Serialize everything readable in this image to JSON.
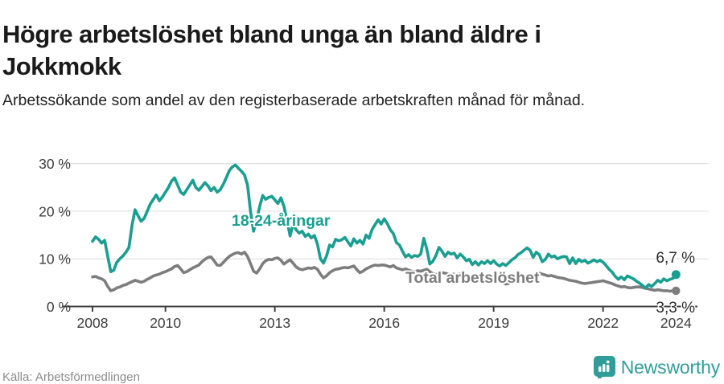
{
  "header": {
    "title_line1": "Högre arbetslöshet bland unga än bland äldre i",
    "title_line2": "Jokkmokk",
    "subtitle": "Arbetssökande som andel av den registerbaserade arbetskraften månad för månad."
  },
  "footer": {
    "source": "Källa: Arbetsförmedlingen",
    "brand_name": "Newsworthy"
  },
  "colors": {
    "young_line": "#1a9e91",
    "total_line": "#7d7d7d",
    "axis_text": "#3d3d3d",
    "grid": "#dcdcdc",
    "brand_teal": "#2f9e9a"
  },
  "chart_data": {
    "type": "line",
    "x_start": "2008-01",
    "x_end": "2024-01",
    "interval": "monthly",
    "ylim": [
      0,
      30
    ],
    "grid": true,
    "y_ticks": [
      {
        "value": 30,
        "label": "30 %"
      },
      {
        "value": 20,
        "label": "20 %"
      },
      {
        "value": 10,
        "label": "10 %"
      },
      {
        "value": 0,
        "label": "0 %"
      }
    ],
    "x_ticks": [
      {
        "year": 2008,
        "label": "2008"
      },
      {
        "year": 2010,
        "label": "2010"
      },
      {
        "year": 2013,
        "label": "2013"
      },
      {
        "year": 2016,
        "label": "2016"
      },
      {
        "year": 2019,
        "label": "2019"
      },
      {
        "year": 2022,
        "label": "2022"
      },
      {
        "year": 2024,
        "label": "2024"
      }
    ],
    "end_labels": {
      "young": "6,7 %",
      "total": "3,3 %"
    },
    "series": [
      {
        "name": "18-24-åringar",
        "color": "#1a9e91",
        "values": [
          13.7,
          14.6,
          14.1,
          13.3,
          13.9,
          10.5,
          7.3,
          7.6,
          9.3,
          10.0,
          10.6,
          11.4,
          12.4,
          17.0,
          20.3,
          19.0,
          17.9,
          18.5,
          20.0,
          21.5,
          22.5,
          23.4,
          22.2,
          23.0,
          24.0,
          25.0,
          26.3,
          27.0,
          25.5,
          24.0,
          23.5,
          24.5,
          25.5,
          26.5,
          25.0,
          24.4,
          25.2,
          26.0,
          25.3,
          24.3,
          25.0,
          24.0,
          24.5,
          25.6,
          27.0,
          28.5,
          29.3,
          29.7,
          29.0,
          28.4,
          27.6,
          25.5,
          20.0,
          15.8,
          18.0,
          21.0,
          23.3,
          22.5,
          22.9,
          23.1,
          22.4,
          21.6,
          22.8,
          21.0,
          18.0,
          14.8,
          17.3,
          16.1,
          15.4,
          15.8,
          14.7,
          15.2,
          14.4,
          14.9,
          13.1,
          10.0,
          9.1,
          10.6,
          12.9,
          12.5,
          14.1,
          13.8,
          14.0,
          14.5,
          13.6,
          12.7,
          14.2,
          13.3,
          13.9,
          13.1,
          15.0,
          14.3,
          16.2,
          17.2,
          18.2,
          17.3,
          18.4,
          17.4,
          16.1,
          15.3,
          13.4,
          12.9,
          11.6,
          10.4,
          10.9,
          10.3,
          10.7,
          10.5,
          11.0,
          14.3,
          12.0,
          8.9,
          9.5,
          10.7,
          12.4,
          11.6,
          10.5,
          11.4,
          11.0,
          11.2,
          10.2,
          11.0,
          10.4,
          9.6,
          9.9,
          8.8,
          9.4,
          8.7,
          9.4,
          9.0,
          9.6,
          9.0,
          9.6,
          8.9,
          8.5,
          9.0,
          8.6,
          9.2,
          9.8,
          10.2,
          10.9,
          11.3,
          11.8,
          12.3,
          11.8,
          10.3,
          11.4,
          10.9,
          9.4,
          9.9,
          11.0,
          10.4,
          10.6,
          10.0,
          10.3,
          10.5,
          10.4,
          9.0,
          10.2,
          9.0,
          9.9,
          9.4,
          9.7,
          9.1,
          9.4,
          9.8,
          9.4,
          9.7,
          9.3,
          8.6,
          7.8,
          7.2,
          6.3,
          5.7,
          6.2,
          5.6,
          6.4,
          6.1,
          5.8,
          5.3,
          4.9,
          4.4,
          3.9,
          4.6,
          4.2,
          4.8,
          5.5,
          5.1,
          5.8,
          5.4,
          5.7,
          5.9,
          6.7
        ]
      },
      {
        "name": "Total arbetslöshet",
        "color": "#7d7d7d",
        "values": [
          6.2,
          6.3,
          6.0,
          5.8,
          5.4,
          4.2,
          3.3,
          3.5,
          3.9,
          4.1,
          4.4,
          4.6,
          4.9,
          5.2,
          5.5,
          5.3,
          5.1,
          5.3,
          5.7,
          6.0,
          6.4,
          6.6,
          6.8,
          7.1,
          7.3,
          7.6,
          7.9,
          8.4,
          8.6,
          7.9,
          7.1,
          7.3,
          7.7,
          8.1,
          8.4,
          8.7,
          9.4,
          9.9,
          10.3,
          10.4,
          9.6,
          8.7,
          8.6,
          9.2,
          9.9,
          10.5,
          10.9,
          11.2,
          11.3,
          11.0,
          11.4,
          10.5,
          9.0,
          7.4,
          7.0,
          7.9,
          9.0,
          9.6,
          9.9,
          9.8,
          10.1,
          10.2,
          9.7,
          8.9,
          9.4,
          9.8,
          9.1,
          8.3,
          7.9,
          7.7,
          7.9,
          8.1,
          8.0,
          8.2,
          7.8,
          6.8,
          6.0,
          6.4,
          7.1,
          7.5,
          7.8,
          7.9,
          8.1,
          8.2,
          8.1,
          8.3,
          8.5,
          7.7,
          7.1,
          7.4,
          7.9,
          8.2,
          8.5,
          8.7,
          8.6,
          8.7,
          8.7,
          8.5,
          8.3,
          8.6,
          8.1,
          7.9,
          7.7,
          7.9,
          7.6,
          7.4,
          7.3,
          7.5,
          7.4,
          7.6,
          7.8,
          7.3,
          6.9,
          6.7,
          6.9,
          7.1,
          7.0,
          6.8,
          6.7,
          6.8,
          6.7,
          6.9,
          6.7,
          6.5,
          6.3,
          6.1,
          6.3,
          6.4,
          6.2,
          6.1,
          6.0,
          6.1,
          5.8,
          5.6,
          5.3,
          5.0,
          4.7,
          4.8,
          5.2,
          5.5,
          5.8,
          6.0,
          6.2,
          6.4,
          6.5,
          6.7,
          6.9,
          7.0,
          6.8,
          6.6,
          6.4,
          6.5,
          6.3,
          6.1,
          6.0,
          5.9,
          5.7,
          5.5,
          5.4,
          5.3,
          5.1,
          4.9,
          4.8,
          4.9,
          5.0,
          5.1,
          5.2,
          5.3,
          5.4,
          5.2,
          5.0,
          4.8,
          4.5,
          4.3,
          4.1,
          4.2,
          4.0,
          3.9,
          4.0,
          4.1,
          4.1,
          4.0,
          3.8,
          3.7,
          3.5,
          3.4,
          3.5,
          3.4,
          3.3,
          3.3,
          3.2,
          3.3,
          3.3
        ]
      }
    ]
  }
}
